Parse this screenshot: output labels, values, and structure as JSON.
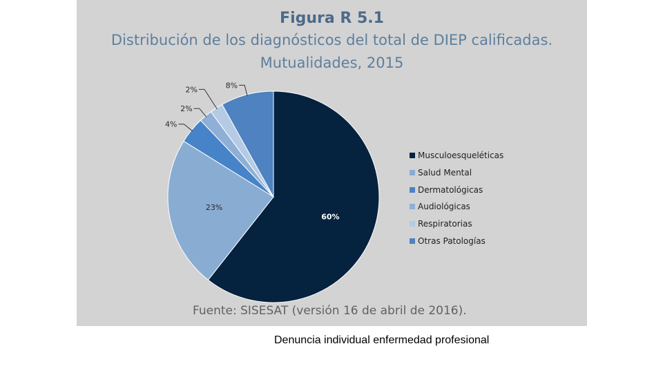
{
  "figure": {
    "title": "Figura R 5.1",
    "subtitle_line1": "Distribución de los diagnósticos del total de DIEP calificadas.",
    "subtitle_line2": "Mutualidades, 2015",
    "source": "Fuente: SISESAT (versión 16 de abril de 2016)."
  },
  "caption": "Denuncia individual enfermedad profesional",
  "chart_data": {
    "type": "pie",
    "legend_position": "right",
    "slices": [
      {
        "name": "Musculoesqueléticas",
        "value": 60,
        "label": "60%",
        "color": "#05223f"
      },
      {
        "name": "Salud Mental",
        "value": 23,
        "label": "23%",
        "color": "#89acd3"
      },
      {
        "name": "Dermatológicas",
        "value": 4,
        "label": "4%",
        "color": "#4783c8"
      },
      {
        "name": "Audiológicas",
        "value": 2,
        "label": "2%",
        "color": "#8eafd6"
      },
      {
        "name": "Respiratorias",
        "value": 2,
        "label": "2%",
        "color": "#b5cbe5"
      },
      {
        "name": "Otras Patologías",
        "value": 8,
        "label": "8%",
        "color": "#4e82c0"
      }
    ]
  }
}
